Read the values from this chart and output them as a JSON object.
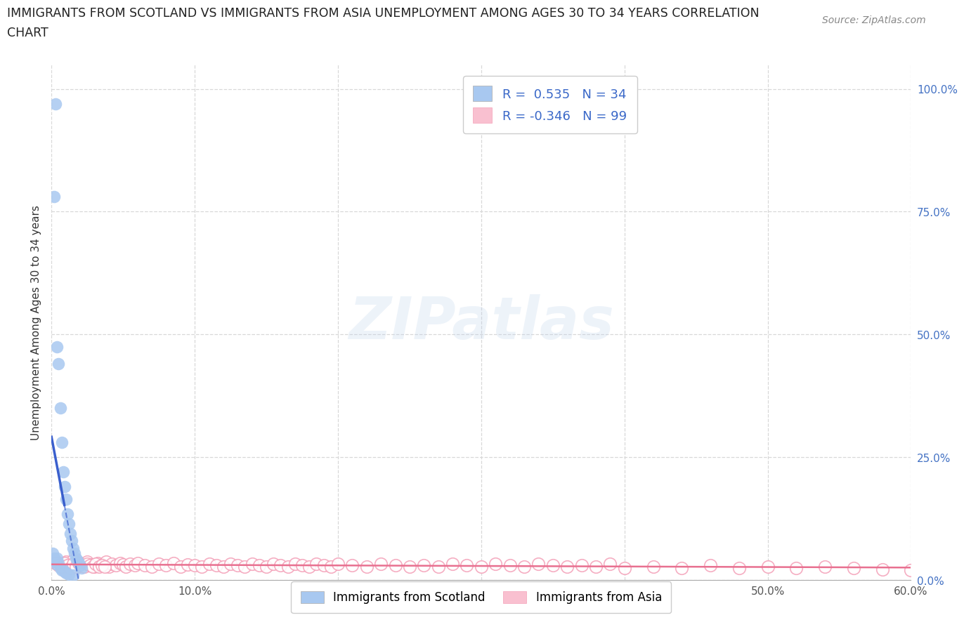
{
  "title_line1": "IMMIGRANTS FROM SCOTLAND VS IMMIGRANTS FROM ASIA UNEMPLOYMENT AMONG AGES 30 TO 34 YEARS CORRELATION",
  "title_line2": "CHART",
  "source": "Source: ZipAtlas.com",
  "ylabel": "Unemployment Among Ages 30 to 34 years",
  "xlim": [
    0.0,
    0.6
  ],
  "ylim": [
    0.0,
    1.05
  ],
  "xticks": [
    0.0,
    0.1,
    0.2,
    0.3,
    0.4,
    0.5,
    0.6
  ],
  "xticklabels": [
    "0.0%",
    "10.0%",
    "20.0%",
    "30.0%",
    "40.0%",
    "50.0%",
    "60.0%"
  ],
  "yticks": [
    0.0,
    0.25,
    0.5,
    0.75,
    1.0
  ],
  "yticklabels": [
    "0.0%",
    "25.0%",
    "50.0%",
    "75.0%",
    "100.0%"
  ],
  "scotland_color": "#a8c8f0",
  "asia_color_face": "#ffffff",
  "asia_color_edge": "#f4a0b8",
  "scotland_R": 0.535,
  "scotland_N": 34,
  "asia_R": -0.346,
  "asia_N": 99,
  "trend_blue": "#3a5fcd",
  "trend_pink": "#e87090",
  "legend_text_color": "#3a68c8",
  "background_color": "#ffffff",
  "grid_color": "#d8d8d8",
  "scotland_x": [
    0.003,
    0.002,
    0.004,
    0.005,
    0.006,
    0.007,
    0.008,
    0.009,
    0.01,
    0.011,
    0.012,
    0.013,
    0.014,
    0.015,
    0.016,
    0.017,
    0.018,
    0.019,
    0.02,
    0.021,
    0.003,
    0.004,
    0.005,
    0.006,
    0.007,
    0.008,
    0.009,
    0.01,
    0.012,
    0.015,
    0.001,
    0.002,
    0.003,
    0.004
  ],
  "scotland_y": [
    0.97,
    0.78,
    0.475,
    0.44,
    0.35,
    0.28,
    0.22,
    0.19,
    0.165,
    0.135,
    0.115,
    0.095,
    0.08,
    0.065,
    0.055,
    0.045,
    0.04,
    0.035,
    0.03,
    0.025,
    0.04,
    0.045,
    0.035,
    0.025,
    0.02,
    0.02,
    0.018,
    0.015,
    0.012,
    0.01,
    0.055,
    0.045,
    0.038,
    0.032
  ],
  "asia_x": [
    0.005,
    0.008,
    0.01,
    0.012,
    0.015,
    0.018,
    0.02,
    0.022,
    0.025,
    0.028,
    0.03,
    0.032,
    0.035,
    0.038,
    0.04,
    0.042,
    0.045,
    0.048,
    0.05,
    0.052,
    0.055,
    0.058,
    0.06,
    0.065,
    0.07,
    0.075,
    0.08,
    0.085,
    0.09,
    0.095,
    0.1,
    0.105,
    0.11,
    0.115,
    0.12,
    0.125,
    0.13,
    0.135,
    0.14,
    0.145,
    0.15,
    0.155,
    0.16,
    0.165,
    0.17,
    0.175,
    0.18,
    0.185,
    0.19,
    0.195,
    0.2,
    0.21,
    0.22,
    0.23,
    0.24,
    0.25,
    0.26,
    0.27,
    0.28,
    0.29,
    0.3,
    0.31,
    0.32,
    0.33,
    0.34,
    0.35,
    0.36,
    0.37,
    0.38,
    0.39,
    0.4,
    0.42,
    0.44,
    0.46,
    0.48,
    0.5,
    0.52,
    0.54,
    0.56,
    0.58,
    0.6,
    0.003,
    0.005,
    0.007,
    0.009,
    0.011,
    0.013,
    0.015,
    0.017,
    0.019,
    0.021,
    0.023,
    0.025,
    0.027,
    0.029,
    0.031,
    0.033,
    0.035,
    0.037
  ],
  "asia_y": [
    0.035,
    0.03,
    0.038,
    0.032,
    0.04,
    0.028,
    0.035,
    0.03,
    0.038,
    0.032,
    0.028,
    0.035,
    0.032,
    0.038,
    0.028,
    0.033,
    0.03,
    0.035,
    0.032,
    0.028,
    0.033,
    0.03,
    0.035,
    0.03,
    0.028,
    0.033,
    0.03,
    0.035,
    0.028,
    0.032,
    0.03,
    0.028,
    0.033,
    0.03,
    0.028,
    0.033,
    0.03,
    0.028,
    0.033,
    0.03,
    0.028,
    0.033,
    0.03,
    0.028,
    0.033,
    0.03,
    0.028,
    0.033,
    0.03,
    0.028,
    0.033,
    0.03,
    0.028,
    0.033,
    0.03,
    0.028,
    0.03,
    0.028,
    0.033,
    0.03,
    0.028,
    0.033,
    0.03,
    0.028,
    0.033,
    0.03,
    0.028,
    0.03,
    0.028,
    0.033,
    0.025,
    0.028,
    0.025,
    0.03,
    0.025,
    0.028,
    0.025,
    0.028,
    0.025,
    0.022,
    0.02,
    0.035,
    0.03,
    0.028,
    0.035,
    0.03,
    0.025,
    0.033,
    0.028,
    0.035,
    0.03,
    0.028,
    0.033,
    0.03,
    0.028,
    0.033,
    0.028,
    0.03,
    0.028
  ]
}
